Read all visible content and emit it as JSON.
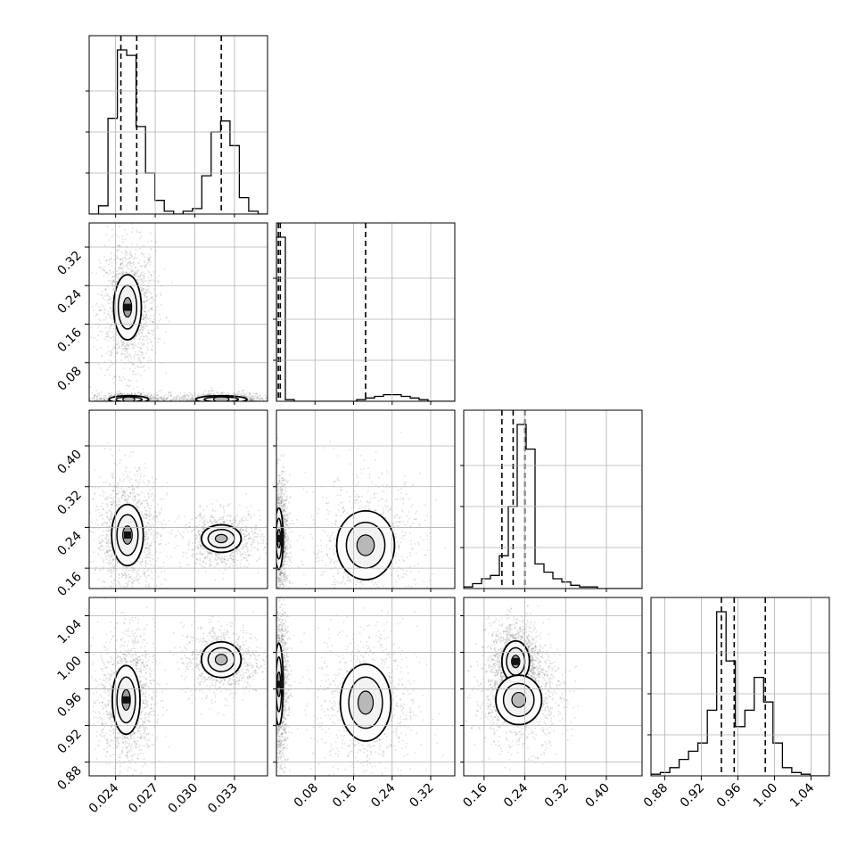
{
  "chart_data": {
    "type": "corner",
    "title": "",
    "grid": true,
    "parameters": [
      {
        "range": [
          0.022,
          0.0355
        ],
        "ticks": [
          0.024,
          0.027,
          0.03,
          0.033
        ],
        "tick_labels": [
          "0.024",
          "0.027",
          "0.030",
          "0.033"
        ]
      },
      {
        "range": [
          0.0,
          0.37
        ],
        "ticks": [
          0.08,
          0.16,
          0.24,
          0.32
        ],
        "tick_labels": [
          "0.08",
          "0.16",
          "0.24",
          "0.32"
        ]
      },
      {
        "range": [
          0.12,
          0.47
        ],
        "ticks": [
          0.16,
          0.24,
          0.32,
          0.4
        ],
        "tick_labels": [
          "0.16",
          "0.24",
          "0.32",
          "0.40"
        ]
      },
      {
        "range": [
          0.865,
          1.06
        ],
        "ticks": [
          0.88,
          0.92,
          0.96,
          1.0,
          1.04
        ],
        "tick_labels": [
          "0.88",
          "0.92",
          "0.96",
          "1.00",
          "1.04"
        ]
      }
    ],
    "histograms": [
      {
        "values": [
          0,
          3,
          35,
          60,
          58,
          32,
          15,
          5,
          1,
          0,
          1,
          2,
          14,
          30,
          34,
          25,
          6,
          1,
          0
        ]
      },
      {
        "values": [
          100,
          1,
          0,
          0,
          0,
          0,
          0,
          0,
          0,
          1,
          2,
          3,
          4,
          4,
          3,
          2,
          1,
          0,
          0,
          0
        ]
      },
      {
        "values": [
          1,
          3,
          6,
          8,
          20,
          50,
          100,
          85,
          15,
          10,
          6,
          4,
          2,
          1,
          1,
          0,
          0,
          0,
          0,
          0
        ]
      },
      {
        "values": [
          1,
          2,
          5,
          10,
          15,
          20,
          40,
          100,
          70,
          30,
          40,
          60,
          45,
          20,
          5,
          2,
          1,
          0,
          0
        ]
      }
    ],
    "quantiles": [
      [
        0.0244,
        0.0256,
        0.032
      ],
      [
        0.004,
        0.008,
        0.185
      ],
      [
        0.195,
        0.217,
        0.24
      ],
      [
        0.942,
        0.956,
        0.99
      ]
    ],
    "pairs": [
      {
        "row": 1,
        "col": 0,
        "modes": [
          {
            "cx": 0.0249,
            "cy": 0.195,
            "sx": 0.0007,
            "sy": 0.045
          },
          {
            "cx": 0.025,
            "cy": 0.004,
            "sx": 0.001,
            "sy": 0.005
          },
          {
            "cx": 0.032,
            "cy": 0.004,
            "sx": 0.0013,
            "sy": 0.005
          }
        ]
      },
      {
        "row": 2,
        "col": 0,
        "modes": [
          {
            "cx": 0.0249,
            "cy": 0.225,
            "sx": 0.0008,
            "sy": 0.04
          },
          {
            "cx": 0.032,
            "cy": 0.218,
            "sx": 0.001,
            "sy": 0.018
          }
        ]
      },
      {
        "row": 3,
        "col": 0,
        "modes": [
          {
            "cx": 0.0248,
            "cy": 0.948,
            "sx": 0.0007,
            "sy": 0.025
          },
          {
            "cx": 0.032,
            "cy": 0.992,
            "sx": 0.001,
            "sy": 0.013
          }
        ]
      },
      {
        "row": 2,
        "col": 1,
        "modes": [
          {
            "cx": 0.005,
            "cy": 0.218,
            "sx": 0.006,
            "sy": 0.04
          },
          {
            "cx": 0.185,
            "cy": 0.205,
            "sx": 0.04,
            "sy": 0.045
          }
        ]
      },
      {
        "row": 3,
        "col": 1,
        "modes": [
          {
            "cx": 0.005,
            "cy": 0.965,
            "sx": 0.006,
            "sy": 0.03
          },
          {
            "cx": 0.185,
            "cy": 0.945,
            "sx": 0.035,
            "sy": 0.028
          }
        ]
      },
      {
        "row": 3,
        "col": 2,
        "modes": [
          {
            "cx": 0.222,
            "cy": 0.99,
            "sx": 0.018,
            "sy": 0.015
          },
          {
            "cx": 0.228,
            "cy": 0.948,
            "sx": 0.03,
            "sy": 0.018
          }
        ]
      }
    ]
  }
}
